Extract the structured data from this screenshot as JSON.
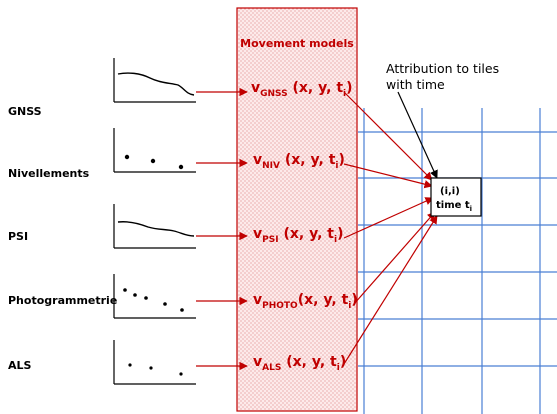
{
  "sources": [
    {
      "label": "GNSS",
      "graph": "curve"
    },
    {
      "label": "Nivellements",
      "graph": "dots"
    },
    {
      "label": "PSI",
      "graph": "curve"
    },
    {
      "label": "Photogrammetrie",
      "graph": "dots-dense"
    },
    {
      "label": "ALS",
      "graph": "dots"
    }
  ],
  "models": {
    "title": "Movement models",
    "velocities": [
      {
        "base": "v",
        "sub": "GNSS",
        "args": " (x, y, t",
        "tsub": "i",
        "close": ")"
      },
      {
        "base": "v",
        "sub": "NIV",
        "args": " (x, y, t",
        "tsub": "i",
        "close": ")"
      },
      {
        "base": "v",
        "sub": "PSI",
        "args": " (x, y, t",
        "tsub": "i",
        "close": ")"
      },
      {
        "base": "v",
        "sub": "PHOTO",
        "args": "(x, y, t",
        "tsub": "i",
        "close": ")"
      },
      {
        "base": "v",
        "sub": "ALS",
        "args": " (x, y, t",
        "tsub": "i",
        "close": ")"
      }
    ]
  },
  "attribution": {
    "line1": "Attribution to tiles",
    "line2": "with time"
  },
  "tile": {
    "index": "(i,i)",
    "time": "time t",
    "time_sub": "i"
  },
  "colors": {
    "red": "#c00000",
    "grid": "#4a7fd4",
    "panel_fill": "#fbe4e4"
  }
}
